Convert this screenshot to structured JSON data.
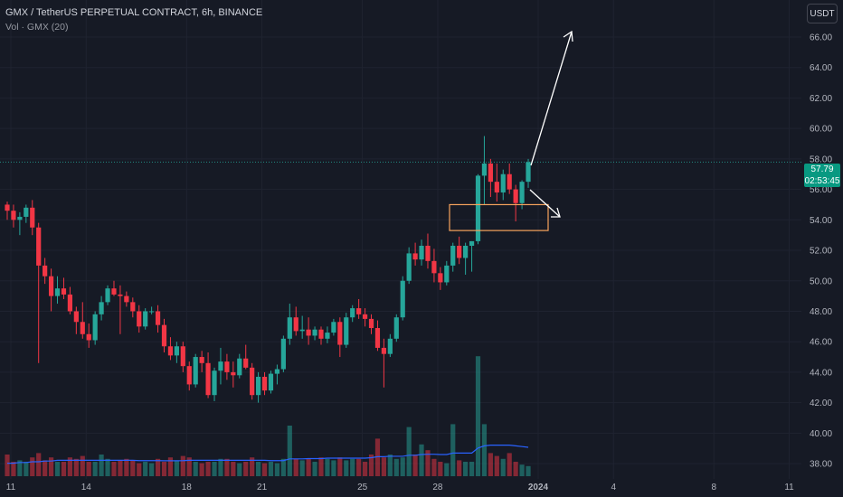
{
  "legend": {
    "title": "GMX / TetherUS PERPETUAL CONTRACT, 6h, BINANCE",
    "volume": "Vol · GMX (20)"
  },
  "currency_button": "USDT",
  "last_price": {
    "value": "57.79",
    "countdown": "02:53:45"
  },
  "colors": {
    "up": "#26a69a",
    "down": "#f23645",
    "background": "#161a25",
    "ma": "#2962ff",
    "box": "#f7a35c",
    "arrow": "#ffffff"
  },
  "chart_data": {
    "type": "candlestick",
    "title": "GMX / TetherUS PERPETUAL CONTRACT, 6h, BINANCE",
    "ylim": [
      37.5,
      69
    ],
    "y_ticks": [
      "38.00",
      "40.00",
      "42.00",
      "44.00",
      "46.00",
      "48.00",
      "50.00",
      "52.00",
      "54.00",
      "56.00",
      "58.00",
      "60.00",
      "62.00",
      "64.00",
      "66.00"
    ],
    "x_ticks": [
      {
        "label": "11",
        "date": "2023-12-11"
      },
      {
        "label": "14",
        "date": "2023-12-14"
      },
      {
        "label": "18",
        "date": "2023-12-18"
      },
      {
        "label": "21",
        "date": "2023-12-21"
      },
      {
        "label": "25",
        "date": "2023-12-25"
      },
      {
        "label": "28",
        "date": "2023-12-28"
      },
      {
        "label": "2024",
        "date": "2024-01-01"
      },
      {
        "label": "4",
        "date": "2024-01-04"
      },
      {
        "label": "8",
        "date": "2024-01-08"
      },
      {
        "label": "11",
        "date": "2024-01-11"
      }
    ],
    "ohlc": [
      [
        55.0,
        55.2,
        54.0,
        54.6
      ],
      [
        54.6,
        55.0,
        53.5,
        54.0
      ],
      [
        54.0,
        54.5,
        53.0,
        54.2
      ],
      [
        54.2,
        55.0,
        53.8,
        54.8
      ],
      [
        54.8,
        55.3,
        53.0,
        53.5
      ],
      [
        53.5,
        53.8,
        44.6,
        51.0
      ],
      [
        51.0,
        51.5,
        49.8,
        50.3
      ],
      [
        50.3,
        50.8,
        48.0,
        49.0
      ],
      [
        49.0,
        50.3,
        48.5,
        49.5
      ],
      [
        49.5,
        50.2,
        48.8,
        49.1
      ],
      [
        49.1,
        49.6,
        47.8,
        48.0
      ],
      [
        48.0,
        48.3,
        46.5,
        47.3
      ],
      [
        47.3,
        48.6,
        46.2,
        46.5
      ],
      [
        46.5,
        47.2,
        45.6,
        46.1
      ],
      [
        46.1,
        48.0,
        45.8,
        47.8
      ],
      [
        47.8,
        49.0,
        47.4,
        48.6
      ],
      [
        48.6,
        49.7,
        48.4,
        49.5
      ],
      [
        49.5,
        50.0,
        49.0,
        49.1
      ],
      [
        49.1,
        49.7,
        46.5,
        49.0
      ],
      [
        49.0,
        49.3,
        48.3,
        48.6
      ],
      [
        48.6,
        48.9,
        47.6,
        48.0
      ],
      [
        48.0,
        48.4,
        46.6,
        47.0
      ],
      [
        47.0,
        48.2,
        46.8,
        48.0
      ],
      [
        48.0,
        48.3,
        47.8,
        48.0
      ],
      [
        48.0,
        48.4,
        46.6,
        47.1
      ],
      [
        47.1,
        47.5,
        45.3,
        45.7
      ],
      [
        45.7,
        46.3,
        44.8,
        45.1
      ],
      [
        45.1,
        46.0,
        44.6,
        45.7
      ],
      [
        45.7,
        46.0,
        44.0,
        44.4
      ],
      [
        44.4,
        44.7,
        42.8,
        43.2
      ],
      [
        43.2,
        45.2,
        43.0,
        45.0
      ],
      [
        45.0,
        45.4,
        44.0,
        44.6
      ],
      [
        44.6,
        45.3,
        42.3,
        42.5
      ],
      [
        42.5,
        44.3,
        42.1,
        44.1
      ],
      [
        44.1,
        45.6,
        43.2,
        44.7
      ],
      [
        44.7,
        45.2,
        43.5,
        44.0
      ],
      [
        44.0,
        44.7,
        43.0,
        43.8
      ],
      [
        43.8,
        45.2,
        43.6,
        44.9
      ],
      [
        44.9,
        45.8,
        44.2,
        44.3
      ],
      [
        44.3,
        44.6,
        42.2,
        42.5
      ],
      [
        42.5,
        44.0,
        42.0,
        43.7
      ],
      [
        43.7,
        44.0,
        42.5,
        42.8
      ],
      [
        42.8,
        44.1,
        42.6,
        43.9
      ],
      [
        43.9,
        44.5,
        43.2,
        44.2
      ],
      [
        44.2,
        46.4,
        44.0,
        46.2
      ],
      [
        46.2,
        48.5,
        45.8,
        47.6
      ],
      [
        47.6,
        48.3,
        46.4,
        46.7
      ],
      [
        46.7,
        47.7,
        46.2,
        46.8
      ],
      [
        46.8,
        47.6,
        45.8,
        46.4
      ],
      [
        46.4,
        47.0,
        46.1,
        46.8
      ],
      [
        46.8,
        47.0,
        45.8,
        46.2
      ],
      [
        46.2,
        47.0,
        45.9,
        46.6
      ],
      [
        46.6,
        47.5,
        46.4,
        47.3
      ],
      [
        47.3,
        47.6,
        45.0,
        45.8
      ],
      [
        45.8,
        47.9,
        45.6,
        47.6
      ],
      [
        47.6,
        48.4,
        47.3,
        48.2
      ],
      [
        48.2,
        48.8,
        47.5,
        47.8
      ],
      [
        47.8,
        48.2,
        47.0,
        47.5
      ],
      [
        47.5,
        47.8,
        46.5,
        46.9
      ],
      [
        46.9,
        47.4,
        45.4,
        45.6
      ],
      [
        45.6,
        46.2,
        43.0,
        45.2
      ],
      [
        45.2,
        46.5,
        45.0,
        46.2
      ],
      [
        46.2,
        47.8,
        46.0,
        47.6
      ],
      [
        47.6,
        50.3,
        47.4,
        50.0
      ],
      [
        50.0,
        52.2,
        49.8,
        51.8
      ],
      [
        51.8,
        52.5,
        51.0,
        51.4
      ],
      [
        51.4,
        52.7,
        51.0,
        52.3
      ],
      [
        52.3,
        53.1,
        50.8,
        51.3
      ],
      [
        51.3,
        52.1,
        49.9,
        50.5
      ],
      [
        50.5,
        50.9,
        49.4,
        49.9
      ],
      [
        49.9,
        51.3,
        49.7,
        51.0
      ],
      [
        51.0,
        52.5,
        50.6,
        52.3
      ],
      [
        52.3,
        52.9,
        51.1,
        51.5
      ],
      [
        51.5,
        52.5,
        50.4,
        52.3
      ],
      [
        52.3,
        52.6,
        50.6,
        52.6
      ],
      [
        52.6,
        57.0,
        52.4,
        56.9
      ],
      [
        56.9,
        59.5,
        55.0,
        57.7
      ],
      [
        57.7,
        58.0,
        55.5,
        56.5
      ],
      [
        56.5,
        57.7,
        55.2,
        55.8
      ],
      [
        55.8,
        57.3,
        55.3,
        57.0
      ],
      [
        57.0,
        57.7,
        55.7,
        56.0
      ],
      [
        56.0,
        56.3,
        53.9,
        55.1
      ],
      [
        55.1,
        56.6,
        54.7,
        56.5
      ],
      [
        56.5,
        58.0,
        56.1,
        57.79
      ]
    ],
    "volume": [
      1.5,
      1.0,
      1.1,
      1.0,
      1.3,
      1.6,
      1.1,
      1.3,
      1.0,
      1.0,
      1.3,
      1.2,
      1.4,
      1.0,
      1.0,
      1.5,
      1.2,
      1.0,
      1.1,
      1.2,
      1.1,
      0.9,
      1.0,
      0.9,
      1.2,
      1.0,
      1.3,
      1.1,
      1.4,
      1.3,
      1.0,
      0.9,
      1.0,
      1.0,
      1.2,
      1.2,
      1.0,
      0.9,
      1.0,
      1.3,
      1.0,
      0.9,
      1.0,
      0.9,
      1.2,
      3.5,
      1.2,
      1.1,
      1.2,
      1.0,
      1.3,
      1.2,
      1.1,
      1.3,
      1.1,
      1.2,
      1.2,
      1.0,
      1.5,
      2.6,
      1.3,
      1.5,
      1.2,
      1.3,
      3.4,
      1.5,
      2.2,
      1.8,
      1.2,
      1.0,
      0.9,
      3.6,
      1.1,
      1.0,
      1.0,
      8.3,
      3.6,
      1.6,
      1.4,
      1.2,
      1.6,
      1.0,
      0.8,
      0.7
    ],
    "volume_ma": [
      0.9,
      0.9,
      0.95,
      0.95,
      1.0,
      1.0,
      1.05,
      1.05,
      1.1,
      1.1,
      1.1,
      1.1,
      1.1,
      1.1,
      1.1,
      1.1,
      1.1,
      1.1,
      1.1,
      1.1,
      1.1,
      1.08,
      1.08,
      1.08,
      1.08,
      1.07,
      1.07,
      1.07,
      1.08,
      1.1,
      1.1,
      1.1,
      1.1,
      1.1,
      1.1,
      1.1,
      1.1,
      1.1,
      1.1,
      1.1,
      1.1,
      1.1,
      1.08,
      1.08,
      1.08,
      1.2,
      1.2,
      1.2,
      1.22,
      1.22,
      1.22,
      1.25,
      1.25,
      1.25,
      1.25,
      1.25,
      1.25,
      1.25,
      1.28,
      1.35,
      1.35,
      1.38,
      1.38,
      1.38,
      1.45,
      1.45,
      1.5,
      1.52,
      1.52,
      1.5,
      1.5,
      1.6,
      1.6,
      1.6,
      1.6,
      1.95,
      2.1,
      2.15,
      2.15,
      2.15,
      2.15,
      2.1,
      2.05,
      2.0
    ]
  }
}
